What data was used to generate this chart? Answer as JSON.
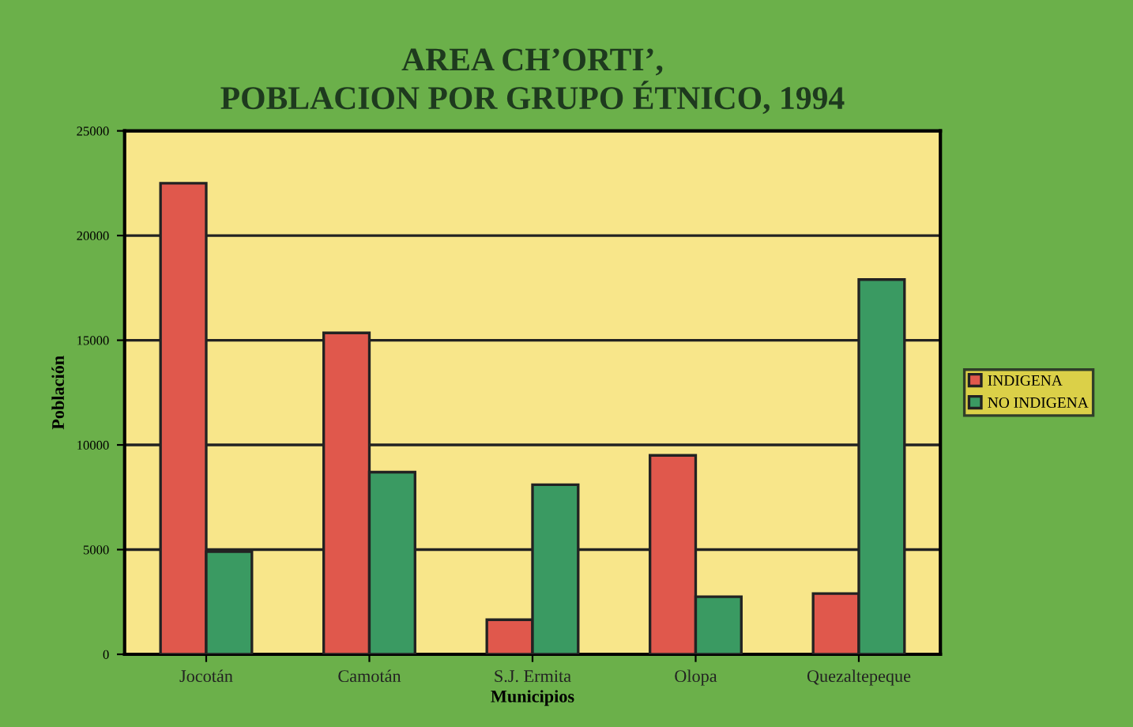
{
  "chart_data": {
    "type": "bar",
    "title": "AREA CH’ORTI’,\nPOBLACION POR GRUPO ÉTNICO, 1994",
    "xlabel": "Municipios",
    "ylabel": "Población",
    "categories": [
      "Jocotán",
      "Camotán",
      "S.J. Ermita",
      "Olopa",
      "Quezaltepeque"
    ],
    "series": [
      {
        "name": "INDIGENA",
        "color": "#e0584c",
        "values": [
          22500,
          15350,
          1650,
          9500,
          2900
        ]
      },
      {
        "name": "NO INDIGENA",
        "color": "#3a9a62",
        "values": [
          4900,
          8700,
          8100,
          2750,
          17900
        ]
      }
    ],
    "ylim": [
      0,
      25000
    ],
    "yticks": [
      0,
      5000,
      10000,
      15000,
      20000,
      25000
    ],
    "grid": "y",
    "legend": "right"
  }
}
